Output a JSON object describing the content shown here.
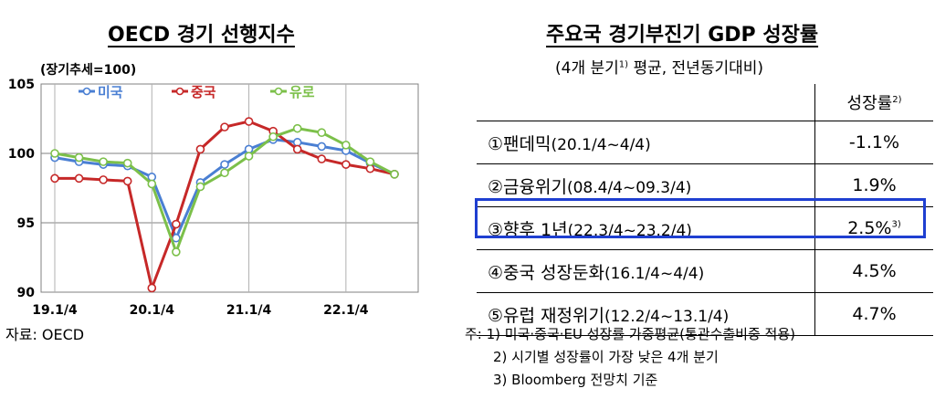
{
  "left": {
    "title": "OECD 경기 선행지수",
    "unit_label": "(장기추세=100)",
    "source": "자료: OECD"
  },
  "chart_data": {
    "type": "line",
    "title": "OECD 경기 선행지수",
    "ylabel": "(장기추세=100)",
    "ylim": [
      90,
      105
    ],
    "yticks": [
      90,
      95,
      100,
      105
    ],
    "xticks": [
      "19.1/4",
      "20.1/4",
      "21.1/4",
      "22.1/4"
    ],
    "grid": true,
    "legend_position": "top",
    "x_start_month": "2019.01",
    "series": [
      {
        "name": "미국",
        "color": "#4a7fd3",
        "values": [
          99.7,
          99.4,
          99.2,
          99.1,
          98.3,
          93.9,
          97.9,
          99.2,
          100.3,
          101.0,
          100.8,
          100.5,
          100.2,
          99.3,
          98.5
        ]
      },
      {
        "name": "중국",
        "color": "#c62828",
        "values": [
          98.2,
          98.2,
          98.1,
          98.0,
          90.3,
          94.9,
          100.3,
          101.9,
          102.3,
          101.6,
          100.3,
          99.6,
          99.2,
          98.9,
          98.5
        ]
      },
      {
        "name": "유로",
        "color": "#7cc04a",
        "values": [
          100.0,
          99.7,
          99.4,
          99.3,
          97.8,
          92.9,
          97.6,
          98.6,
          99.8,
          101.2,
          101.8,
          101.5,
          100.6,
          99.4,
          98.5
        ]
      }
    ]
  },
  "right": {
    "title": "주요국 경기부진기 GDP 성장률",
    "subtitle_pre": "(4개 분기",
    "subtitle_sup": "1)",
    "subtitle_post": " 평균, 전년동기대비)",
    "header_label": "성장률",
    "header_sup": "2)",
    "rows": [
      {
        "label": "①팬데믹",
        "period": "(20.1/4~4/4)",
        "value": "-1.1%",
        "sup": ""
      },
      {
        "label": "②금융위기",
        "period": "(08.4/4~09.3/4)",
        "value": "1.9%",
        "sup": ""
      },
      {
        "label": "③향후 1년",
        "period": "(22.3/4~23.2/4)",
        "value": "2.5%",
        "sup": "3)"
      },
      {
        "label": "④중국 성장둔화",
        "period": "(16.1/4~4/4)",
        "value": "4.5%",
        "sup": ""
      },
      {
        "label": "⑤유럽 재정위기",
        "period": "(12.2/4~13.1/4)",
        "value": "4.7%",
        "sup": ""
      }
    ],
    "notes": [
      "주: 1) 미국·중국·EU 성장률 가중평균(통관수출비중 적용)",
      "2) 시기별 성장률이 가장 낮은 4개 분기",
      "3) Bloomberg 전망치 기준"
    ]
  }
}
